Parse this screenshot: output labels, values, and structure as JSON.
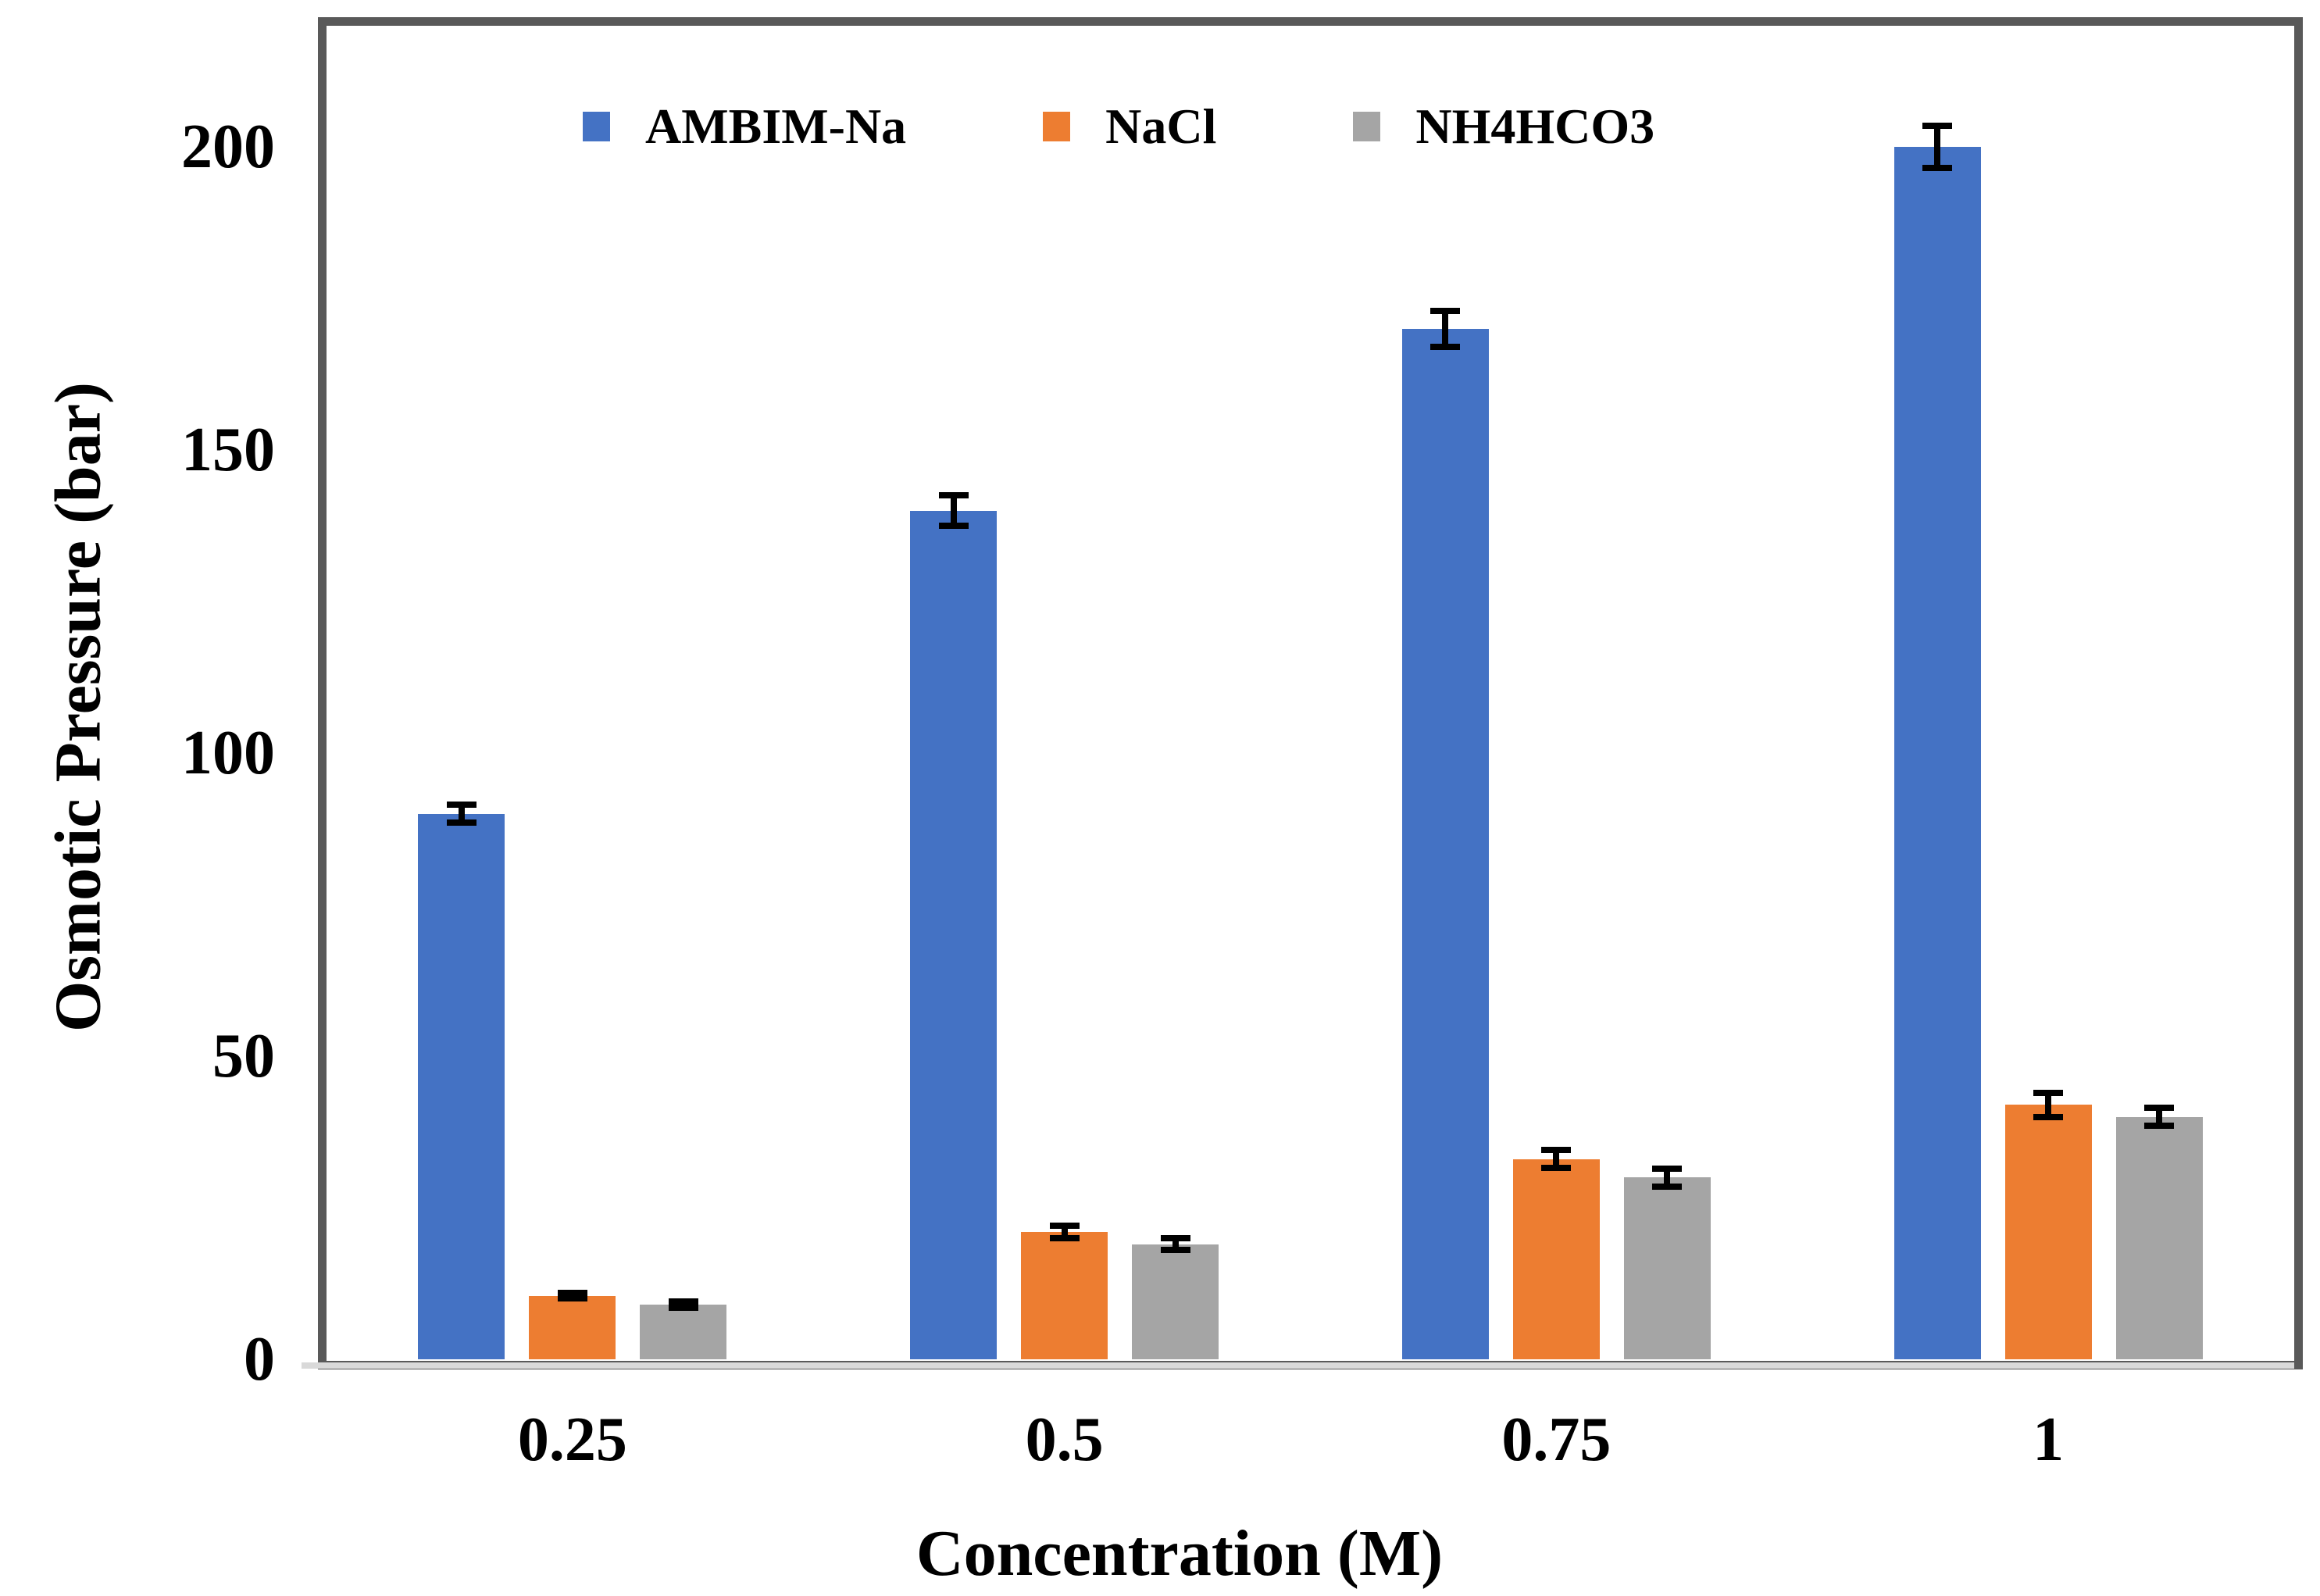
{
  "chart_data": {
    "type": "bar",
    "title": "",
    "xlabel": "Concentration (M)",
    "ylabel": "Osmotic Pressure (bar)",
    "categories": [
      "0.25",
      "0.5",
      "0.75",
      "1"
    ],
    "series": [
      {
        "name": "AMBIM-Na",
        "color": "#4472C4",
        "values": [
          90,
          140,
          170,
          200
        ],
        "errors": [
          2,
          3,
          3.5,
          4
        ]
      },
      {
        "name": "NaCl",
        "color": "#ED7D31",
        "values": [
          10.5,
          21,
          33,
          42
        ],
        "errors": [
          1,
          1.5,
          2,
          2.5
        ]
      },
      {
        "name": "NH4HCO3",
        "color": "#A5A5A5",
        "values": [
          9,
          19,
          30,
          40
        ],
        "errors": [
          1,
          1.5,
          2,
          2
        ]
      }
    ],
    "y_axis": {
      "min": 0,
      "max": 220,
      "tick_interval": 50,
      "ticks": [
        0,
        50,
        100,
        150,
        200
      ]
    },
    "error_bars": true,
    "grid": false,
    "legend_position": "inside-top-left",
    "colors": {
      "frame": "#595959",
      "axis_line": "#D9D9D9",
      "error_bar": "#000000",
      "text": "#000000",
      "background": "#FFFFFF"
    }
  }
}
